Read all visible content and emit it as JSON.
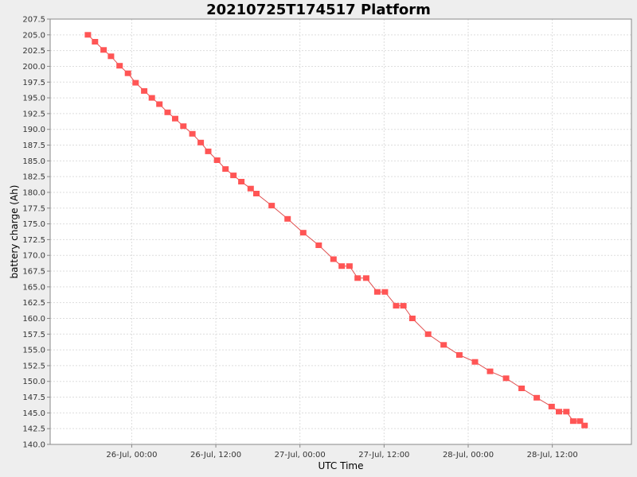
{
  "chart_data": {
    "type": "line",
    "title": "20210725T174517 Platform",
    "xlabel": "UTC Time",
    "ylabel": "battery charge (Ah)",
    "ylim": [
      140.0,
      207.5
    ],
    "y_ticks": [
      "140.0",
      "142.5",
      "145.0",
      "147.5",
      "150.0",
      "152.5",
      "155.0",
      "157.5",
      "160.0",
      "162.5",
      "165.0",
      "167.5",
      "170.0",
      "172.5",
      "175.0",
      "177.5",
      "180.0",
      "182.5",
      "185.0",
      "187.5",
      "190.0",
      "192.5",
      "195.0",
      "197.5",
      "200.0",
      "202.5",
      "205.0",
      "207.5"
    ],
    "xlim": [
      "2021-07-25 12:22",
      "2021-07-28 23:17"
    ],
    "x_ticks": [
      {
        "label": "26-Jul, 00:00",
        "time": "2021-07-26 00:00"
      },
      {
        "label": "26-Jul, 12:00",
        "time": "2021-07-26 12:00"
      },
      {
        "label": "27-Jul, 00:00",
        "time": "2021-07-27 00:00"
      },
      {
        "label": "27-Jul, 12:00",
        "time": "2021-07-27 12:00"
      },
      {
        "label": "28-Jul, 00:00",
        "time": "2021-07-28 00:00"
      },
      {
        "label": "28-Jul, 12:00",
        "time": "2021-07-28 12:00"
      }
    ],
    "grid": true,
    "colors": {
      "series": "#ff5555",
      "line": "#e05050"
    },
    "series": [
      {
        "values": [
          {
            "x": "2021-07-25 17:45",
            "y": 205.0
          },
          {
            "x": "2021-07-25 18:46",
            "y": 203.9
          },
          {
            "x": "2021-07-25 19:59",
            "y": 202.6
          },
          {
            "x": "2021-07-25 21:03",
            "y": 201.6
          },
          {
            "x": "2021-07-25 22:16",
            "y": 200.1
          },
          {
            "x": "2021-07-25 23:28",
            "y": 198.9
          },
          {
            "x": "2021-07-26 00:33",
            "y": 197.4
          },
          {
            "x": "2021-07-26 01:47",
            "y": 196.1
          },
          {
            "x": "2021-07-26 02:52",
            "y": 195.0
          },
          {
            "x": "2021-07-26 03:57",
            "y": 194.0
          },
          {
            "x": "2021-07-26 05:07",
            "y": 192.7
          },
          {
            "x": "2021-07-26 06:12",
            "y": 191.7
          },
          {
            "x": "2021-07-26 07:22",
            "y": 190.5
          },
          {
            "x": "2021-07-26 08:39",
            "y": 189.3
          },
          {
            "x": "2021-07-26 09:51",
            "y": 187.9
          },
          {
            "x": "2021-07-26 10:55",
            "y": 186.5
          },
          {
            "x": "2021-07-26 12:11",
            "y": 185.1
          },
          {
            "x": "2021-07-26 13:23",
            "y": 183.7
          },
          {
            "x": "2021-07-26 14:31",
            "y": 182.7
          },
          {
            "x": "2021-07-26 15:38",
            "y": 181.7
          },
          {
            "x": "2021-07-26 16:58",
            "y": 180.6
          },
          {
            "x": "2021-07-26 17:47",
            "y": 179.8
          },
          {
            "x": "2021-07-26 19:58",
            "y": 177.9
          },
          {
            "x": "2021-07-26 22:14",
            "y": 175.8
          },
          {
            "x": "2021-07-27 00:28",
            "y": 173.6
          },
          {
            "x": "2021-07-27 02:41",
            "y": 171.6
          },
          {
            "x": "2021-07-27 04:47",
            "y": 169.4
          },
          {
            "x": "2021-07-27 05:58",
            "y": 168.3
          },
          {
            "x": "2021-07-27 07:04",
            "y": 168.3
          },
          {
            "x": "2021-07-27 08:14",
            "y": 166.4
          },
          {
            "x": "2021-07-27 09:27",
            "y": 166.4
          },
          {
            "x": "2021-07-27 11:02",
            "y": 164.2
          },
          {
            "x": "2021-07-27 12:07",
            "y": 164.2
          },
          {
            "x": "2021-07-27 13:43",
            "y": 162.0
          },
          {
            "x": "2021-07-27 14:45",
            "y": 162.0
          },
          {
            "x": "2021-07-27 16:02",
            "y": 160.0
          },
          {
            "x": "2021-07-27 18:17",
            "y": 157.5
          },
          {
            "x": "2021-07-27 20:30",
            "y": 155.8
          },
          {
            "x": "2021-07-27 22:44",
            "y": 154.2
          },
          {
            "x": "2021-07-28 00:58",
            "y": 153.1
          },
          {
            "x": "2021-07-28 03:07",
            "y": 151.6
          },
          {
            "x": "2021-07-28 05:24",
            "y": 150.5
          },
          {
            "x": "2021-07-28 07:37",
            "y": 148.9
          },
          {
            "x": "2021-07-28 09:47",
            "y": 147.4
          },
          {
            "x": "2021-07-28 11:54",
            "y": 146.0
          },
          {
            "x": "2021-07-28 12:57",
            "y": 145.2
          },
          {
            "x": "2021-07-28 14:00",
            "y": 145.2
          },
          {
            "x": "2021-07-28 14:59",
            "y": 143.7
          },
          {
            "x": "2021-07-28 15:57",
            "y": 143.7
          },
          {
            "x": "2021-07-28 16:36",
            "y": 143.0
          }
        ]
      }
    ]
  }
}
